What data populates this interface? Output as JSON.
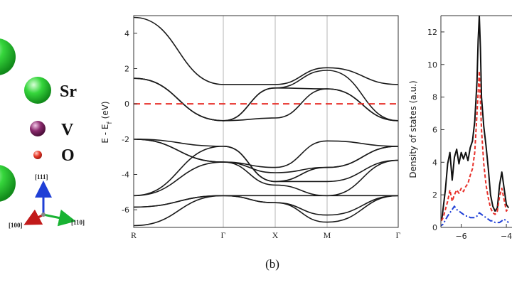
{
  "crystal_panel": {
    "legend": [
      {
        "label": "Sr",
        "color": "#22c22a"
      },
      {
        "label": "V",
        "color": "#7a1f5e"
      },
      {
        "label": "O",
        "color": "#e83a2a"
      }
    ],
    "axes": [
      {
        "label": "[111]",
        "color": "#1f3fd6"
      },
      {
        "label": "[110]",
        "color": "#19b333"
      },
      {
        "label": "[100]",
        "color": "#c21a1a"
      }
    ]
  },
  "caption": "(b)",
  "chart_data": [
    {
      "type": "line",
      "title": "",
      "xlabel": "",
      "ylabel": "E - E",
      "ylabel_subscript": "f",
      "ylabel_unit": "(eV)",
      "x_ticks": [
        "R",
        "Γ",
        "X",
        "M",
        "Γ"
      ],
      "y_ticks": [
        "-6",
        "-4",
        "-2",
        "0",
        "2",
        "4"
      ],
      "ylim": [
        -7,
        5
      ],
      "grid": "vertical lines at high-symmetry points",
      "fermi_level": {
        "energy": 0,
        "color": "#e8302a",
        "style": "dashed"
      },
      "series": [
        {
          "k": [
            0,
            1,
            2,
            3,
            4
          ],
          "values": [
            4.9,
            1.1,
            1.1,
            2.05,
            1.1
          ]
        },
        {
          "k": [
            0,
            1,
            2,
            3,
            4
          ],
          "values": [
            1.45,
            -0.95,
            0.9,
            1.9,
            -0.95
          ]
        },
        {
          "k": [
            0,
            1,
            2,
            3,
            4
          ],
          "values": [
            1.45,
            -0.95,
            0.9,
            0.85,
            -0.95
          ]
        },
        {
          "k": [
            0,
            1,
            2,
            3,
            4
          ],
          "values": [
            1.45,
            -0.95,
            -0.8,
            0.85,
            -0.95
          ]
        },
        {
          "k": [
            0,
            1,
            2,
            3,
            4
          ],
          "values": [
            -2.0,
            -3.3,
            -3.6,
            -2.1,
            -2.4
          ]
        },
        {
          "k": [
            0,
            1,
            2,
            3,
            4
          ],
          "values": [
            -2.0,
            -3.3,
            -3.9,
            -3.6,
            -2.4
          ]
        },
        {
          "k": [
            0,
            1,
            2,
            3,
            4
          ],
          "values": [
            -2.0,
            -2.4,
            -4.4,
            -3.6,
            -2.4
          ]
        },
        {
          "k": [
            0,
            1,
            2,
            3,
            4
          ],
          "values": [
            -5.2,
            -2.4,
            -4.4,
            -4.4,
            -3.2
          ]
        },
        {
          "k": [
            0,
            1,
            2,
            3,
            4
          ],
          "values": [
            -5.2,
            -3.3,
            -4.6,
            -5.2,
            -3.2
          ]
        },
        {
          "k": [
            0,
            1,
            2,
            3,
            4
          ],
          "values": [
            -5.85,
            -5.2,
            -5.2,
            -5.2,
            -5.2
          ]
        },
        {
          "k": [
            0,
            1,
            2,
            3,
            4
          ],
          "values": [
            -5.85,
            -5.2,
            -5.6,
            -6.3,
            -5.2
          ]
        },
        {
          "k": [
            0,
            1,
            2,
            3,
            4
          ],
          "values": [
            -6.9,
            -5.2,
            -5.6,
            -6.7,
            -5.2
          ]
        }
      ]
    },
    {
      "type": "line",
      "title": "",
      "xlabel": "",
      "ylabel": "Density of states (a.u.)",
      "x_ticks": [
        "−6",
        "−4"
      ],
      "xlim": [
        -7.0,
        -3.9
      ],
      "y_ticks": [
        "0",
        "2",
        "4",
        "6",
        "8",
        "10",
        "12"
      ],
      "ylim": [
        0,
        13
      ],
      "series": [
        {
          "color": "#111111",
          "style": "solid",
          "x": [
            -7.0,
            -6.85,
            -6.7,
            -6.6,
            -6.5,
            -6.4,
            -6.3,
            -6.2,
            -6.1,
            -6.0,
            -5.9,
            -5.8,
            -5.7,
            -5.6,
            -5.5,
            -5.4,
            -5.3,
            -5.25,
            -5.2,
            -5.15,
            -5.1,
            -5.0,
            -4.9,
            -4.8,
            -4.7,
            -4.6,
            -4.5,
            -4.4,
            -4.3,
            -4.2,
            -4.1,
            -4.0,
            -3.9
          ],
          "values": [
            0.1,
            0.6,
            2.3,
            3.9,
            4.6,
            2.9,
            4.3,
            4.8,
            3.9,
            4.6,
            4.2,
            4.6,
            4.1,
            4.9,
            5.3,
            6.5,
            9.0,
            11.5,
            13.0,
            11.0,
            8.0,
            6.2,
            5.0,
            3.6,
            2.0,
            1.3,
            1.0,
            1.2,
            2.6,
            3.4,
            2.4,
            1.4,
            1.2
          ]
        },
        {
          "color": "#e8302a",
          "style": "dashed",
          "x": [
            -7.0,
            -6.8,
            -6.6,
            -6.5,
            -6.4,
            -6.3,
            -6.2,
            -6.1,
            -6.0,
            -5.9,
            -5.8,
            -5.7,
            -5.6,
            -5.5,
            -5.4,
            -5.3,
            -5.2,
            -5.1,
            -5.0,
            -4.9,
            -4.8,
            -4.7,
            -4.6,
            -4.5,
            -4.4,
            -4.3,
            -4.2,
            -4.1,
            -4.0,
            -3.9
          ],
          "values": [
            0.1,
            0.6,
            1.6,
            2.3,
            1.6,
            2.0,
            2.3,
            2.1,
            2.4,
            2.2,
            2.5,
            2.7,
            3.2,
            3.6,
            4.6,
            7.0,
            9.6,
            6.0,
            3.9,
            2.6,
            1.8,
            1.2,
            0.9,
            0.8,
            1.0,
            1.9,
            2.4,
            1.7,
            1.0,
            1.2
          ]
        },
        {
          "color": "#1f3fd6",
          "style": "dashdot",
          "x": [
            -7.0,
            -6.8,
            -6.6,
            -6.4,
            -6.3,
            -6.2,
            -6.1,
            -6.0,
            -5.9,
            -5.8,
            -5.7,
            -5.6,
            -5.5,
            -5.4,
            -5.3,
            -5.2,
            -5.1,
            -5.0,
            -4.9,
            -4.8,
            -4.7,
            -4.6,
            -4.5,
            -4.4,
            -4.3,
            -4.2,
            -4.1,
            -4.0,
            -3.9
          ],
          "values": [
            0.0,
            0.2,
            0.7,
            1.1,
            1.3,
            1.1,
            1.0,
            0.9,
            0.8,
            0.7,
            0.7,
            0.6,
            0.6,
            0.6,
            0.7,
            0.9,
            0.8,
            0.7,
            0.6,
            0.5,
            0.4,
            0.4,
            0.3,
            0.3,
            0.3,
            0.4,
            0.5,
            0.4,
            0.3
          ]
        }
      ]
    }
  ]
}
